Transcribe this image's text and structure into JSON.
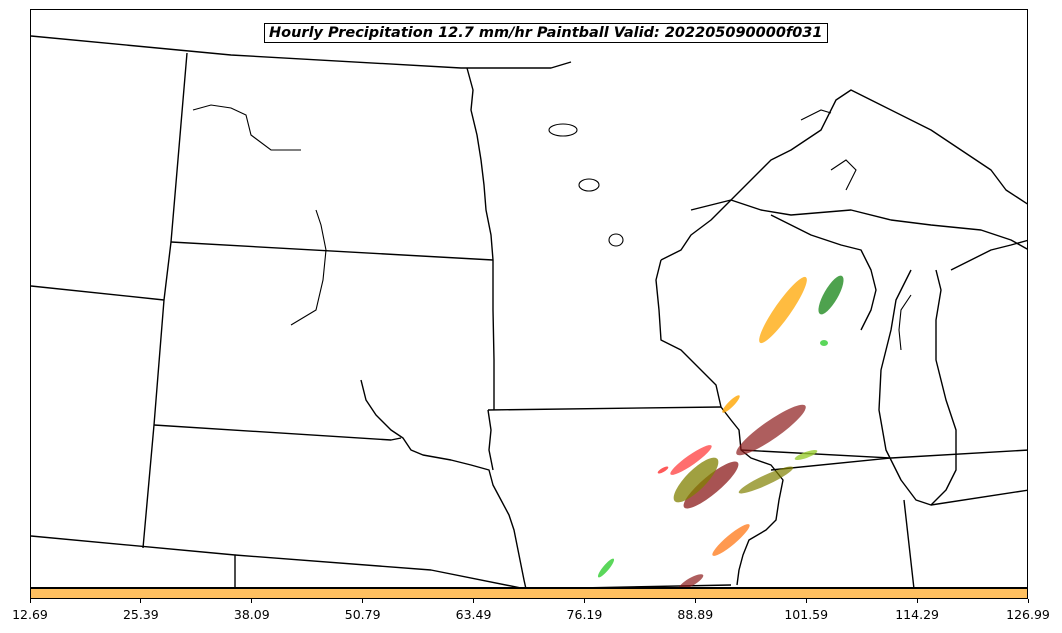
{
  "title": "Hourly Precipitation 12.7 mm/hr Paintball Valid: 202205090000f031",
  "colorbar": {
    "color": "#ffc060",
    "ticks": [
      "12.69",
      "25.39",
      "38.09",
      "50.79",
      "63.49",
      "76.19",
      "88.89",
      "101.59",
      "114.29",
      "126.99"
    ]
  },
  "map": {
    "boundary_color": "#000000",
    "member_colors": [
      "#ffa500",
      "#228b22",
      "#8b1a1a",
      "#808000",
      "#ff3030",
      "#32cd32",
      "#ff7f24",
      "#9acd32"
    ]
  }
}
